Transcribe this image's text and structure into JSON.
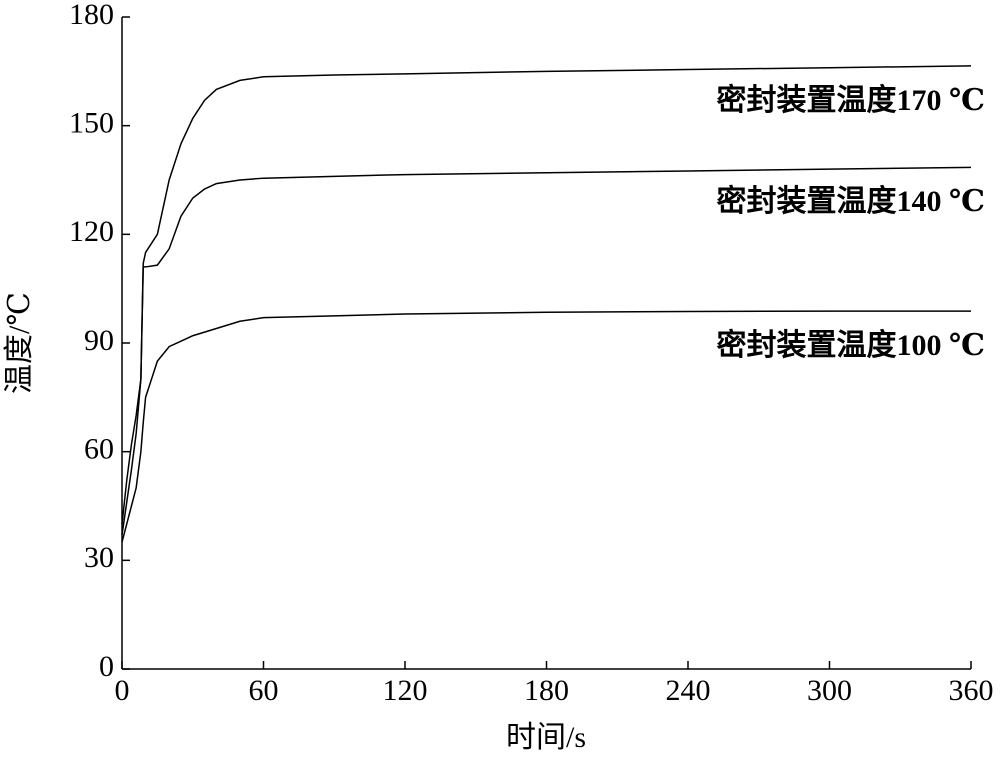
{
  "chart_data": {
    "type": "line",
    "xlabel": "时间/s",
    "ylabel": "温度/℃",
    "xlim": [
      0,
      360
    ],
    "xticks": [
      0,
      60,
      120,
      180,
      240,
      300,
      360
    ],
    "ylim": [
      0,
      180
    ],
    "yticks": [
      0,
      30,
      60,
      90,
      120,
      150,
      180
    ],
    "x": [
      0,
      2,
      4,
      6,
      8,
      9,
      10,
      15,
      20,
      25,
      30,
      35,
      40,
      50,
      60,
      90,
      120,
      180,
      240,
      300,
      360
    ],
    "series": [
      {
        "name": "密封装置温度170 ℃",
        "color": "#000000",
        "values": [
          40,
          52,
          62,
          70,
          80,
          112,
          115,
          120,
          135,
          145,
          152,
          157,
          160,
          162.5,
          163.5,
          164,
          164.3,
          165,
          165.5,
          166,
          166.5
        ]
      },
      {
        "name": "密封装置温度140 ℃",
        "color": "#000000",
        "values": [
          37,
          46,
          55,
          65,
          80,
          111,
          111,
          111.5,
          116,
          125,
          130,
          132.5,
          134,
          135,
          135.5,
          136,
          136.5,
          137,
          137.5,
          138,
          138.5
        ]
      },
      {
        "name": "密封装置温度100 ℃",
        "color": "#000000",
        "values": [
          35,
          40,
          45,
          50,
          60,
          68,
          75,
          85,
          89,
          90.5,
          92,
          93,
          94,
          96,
          97,
          97.5,
          98,
          98.5,
          98.7,
          98.8,
          98.8
        ]
      }
    ]
  }
}
